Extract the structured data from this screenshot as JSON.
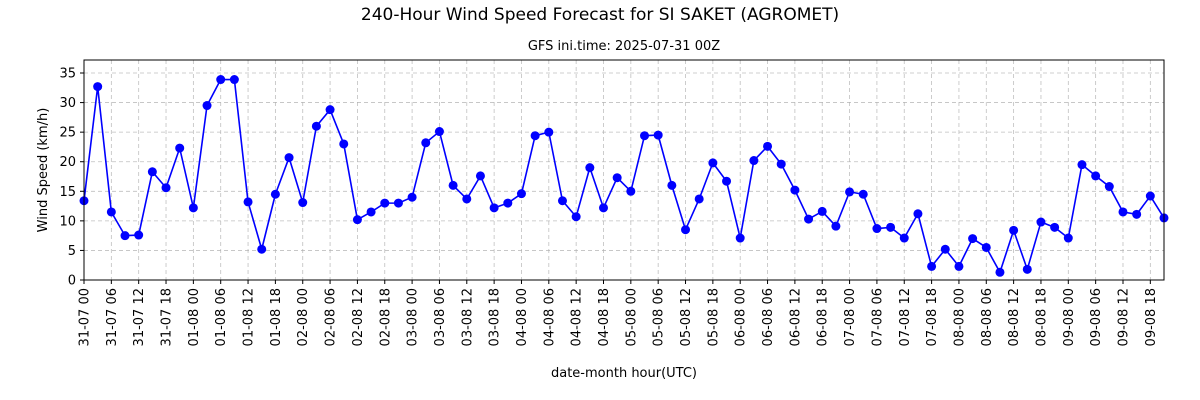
{
  "chart_data": {
    "type": "line",
    "title": "240-Hour Wind Speed Forecast for SI SAKET (AGROMET)",
    "subtitle": "GFS ini.time: 2025-07-31 00Z",
    "xlabel": "date-month hour(UTC)",
    "ylabel": "Wind Speed (km/h)",
    "ylim": [
      0,
      37.2
    ],
    "yticks": [
      0,
      5,
      10,
      15,
      20,
      25,
      30,
      35
    ],
    "grid": true,
    "line_color": "#0000ff",
    "marker_color": "#0000ff",
    "x_step_hours": 3,
    "xtick_labels": [
      "31-07 00",
      "31-07 06",
      "31-07 12",
      "31-07 18",
      "01-08 00",
      "01-08 06",
      "01-08 12",
      "01-08 18",
      "02-08 00",
      "02-08 06",
      "02-08 12",
      "02-08 18",
      "03-08 00",
      "03-08 06",
      "03-08 12",
      "03-08 18",
      "04-08 00",
      "04-08 06",
      "04-08 12",
      "04-08 18",
      "05-08 00",
      "05-08 06",
      "05-08 12",
      "05-08 18",
      "06-08 00",
      "06-08 06",
      "06-08 12",
      "06-08 18",
      "07-08 00",
      "07-08 06",
      "07-08 12",
      "07-08 18",
      "08-08 00",
      "08-08 06",
      "08-08 12",
      "08-08 18",
      "09-08 00",
      "09-08 06",
      "09-08 12",
      "09-08 18"
    ],
    "series": [
      {
        "values": [
          13.4,
          32.7,
          11.5,
          7.5,
          7.6,
          18.3,
          15.6,
          22.3,
          12.2,
          29.5,
          33.9,
          33.9,
          13.2,
          5.2,
          14.5,
          20.7,
          13.1,
          26.0,
          28.8,
          23.0,
          10.2,
          11.5,
          13.0,
          13.0,
          14.0,
          23.2,
          25.1,
          16.0,
          13.7,
          17.6,
          12.2,
          13.0,
          14.6,
          24.4,
          25.0,
          13.4,
          10.7,
          19.0,
          12.2,
          17.3,
          15.0,
          24.4,
          24.5,
          16.0,
          8.5,
          13.7,
          19.8,
          16.7,
          7.1,
          20.2,
          22.6,
          19.6,
          15.2,
          10.3,
          11.6,
          9.1,
          14.9,
          14.5,
          8.7,
          8.9,
          7.1,
          11.2,
          2.3,
          5.2,
          2.3,
          7.0,
          5.5,
          1.3,
          8.4,
          1.8,
          9.8,
          8.9,
          7.1,
          19.5,
          17.6,
          15.8,
          11.5,
          11.1,
          14.2,
          10.5
        ]
      }
    ]
  }
}
